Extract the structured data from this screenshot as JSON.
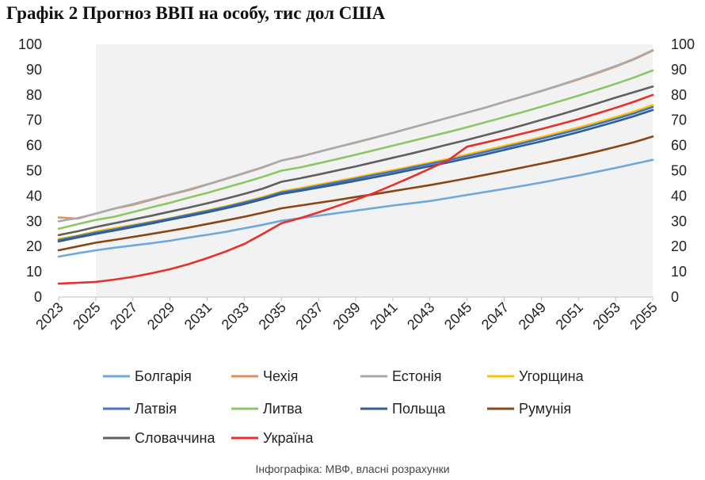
{
  "title": "Графік 2 Прогноз ВВП на особу, тис дол США",
  "source": "Інфографіка: МВФ, власні розрахунки",
  "chart_data": {
    "type": "line",
    "title": "Графік 2 Прогноз ВВП на особу, тис дол США",
    "x": [
      2023,
      2024,
      2025,
      2026,
      2027,
      2028,
      2029,
      2030,
      2031,
      2032,
      2033,
      2034,
      2035,
      2036,
      2037,
      2038,
      2039,
      2040,
      2041,
      2042,
      2043,
      2044,
      2045,
      2046,
      2047,
      2048,
      2049,
      2050,
      2051,
      2052,
      2053,
      2054,
      2055
    ],
    "x_tick_labels": [
      "2023",
      "2025",
      "2027",
      "2029",
      "2031",
      "2033",
      "2035",
      "2037",
      "2039",
      "2041",
      "2043",
      "2045",
      "2047",
      "2049",
      "2051",
      "2053",
      "2055"
    ],
    "ylim": [
      0,
      100
    ],
    "y_ticks": [
      "0",
      "10",
      "20",
      "30",
      "40",
      "50",
      "60",
      "70",
      "80",
      "90",
      "100"
    ],
    "grid": false,
    "shaded_forecast_from": 2025,
    "legend_position": "bottom",
    "series": [
      {
        "name": "Болгарія",
        "color": "#6fa8dc",
        "values": [
          16,
          17.3,
          18.5,
          19.5,
          20.4,
          21.3,
          22.3,
          23.5,
          24.6,
          25.8,
          27.2,
          28.6,
          30.2,
          31.2,
          32.2,
          33.2,
          34.2,
          35.2,
          36.2,
          37.1,
          38,
          39.2,
          40.4,
          41.6,
          42.8,
          44,
          45.3,
          46.7,
          48.1,
          49.6,
          51.1,
          52.7,
          54.3
        ]
      },
      {
        "name": "Чехія",
        "color": "#e0905a",
        "values": [
          31.5,
          31,
          33,
          35,
          36.5,
          38.5,
          40.5,
          42.3,
          44.5,
          46.7,
          49,
          51.3,
          54,
          55.5,
          57.5,
          59.3,
          61.1,
          63,
          65,
          67,
          69,
          71,
          73,
          75,
          77.2,
          79.3,
          81.5,
          83.8,
          86.1,
          88.6,
          91.2,
          94.1,
          97.5
        ]
      },
      {
        "name": "Естонія",
        "color": "#aaaaaa",
        "values": [
          30,
          31.2,
          33,
          35,
          36.8,
          38.7,
          40.6,
          42.5,
          44.6,
          46.8,
          49.1,
          51.4,
          54,
          55.6,
          57.4,
          59.3,
          61.2,
          63.1,
          65,
          67,
          69,
          71,
          73,
          75,
          77.2,
          79.4,
          81.6,
          83.9,
          86.3,
          88.8,
          91.4,
          94.3,
          97.7
        ]
      },
      {
        "name": "Угорщина",
        "color": "#ffc000",
        "values": [
          23,
          24.3,
          26,
          27.2,
          28.5,
          29.8,
          31.2,
          32.7,
          34.3,
          35.9,
          37.7,
          39.6,
          41.8,
          43.1,
          44.5,
          45.9,
          47.3,
          48.8,
          50.2,
          51.7,
          53.2,
          54.7,
          56.4,
          58.1,
          59.8,
          61.5,
          63.3,
          65.2,
          67.1,
          69.1,
          71.2,
          73.4,
          76
        ]
      },
      {
        "name": "Латвія",
        "color": "#4472c4",
        "values": [
          22.5,
          24,
          25.5,
          26.8,
          28.2,
          29.6,
          31,
          32.5,
          34,
          35.6,
          37.4,
          39.2,
          41.4,
          42.6,
          44,
          45.4,
          46.8,
          48.3,
          49.7,
          51.2,
          52.7,
          54.2,
          55.8,
          57.5,
          59.2,
          60.9,
          62.7,
          64.5,
          66.4,
          68.4,
          70.5,
          72.7,
          75.2
        ]
      },
      {
        "name": "Литва",
        "color": "#8cc665",
        "values": [
          27,
          28.8,
          30.5,
          31.8,
          33.6,
          35.5,
          37.3,
          39.3,
          41.2,
          43.3,
          45.4,
          47.6,
          50,
          51.3,
          52.9,
          54.6,
          56.3,
          58.1,
          59.9,
          61.7,
          63.5,
          65.3,
          67.2,
          69.2,
          71.2,
          73.2,
          75.3,
          77.5,
          79.7,
          82,
          84.4,
          86.9,
          89.7
        ]
      },
      {
        "name": "Польща",
        "color": "#2f5f8f",
        "values": [
          22,
          23.5,
          25,
          26.3,
          27.7,
          29.1,
          30.6,
          32,
          33.5,
          35.1,
          36.8,
          38.7,
          40.8,
          42,
          43.3,
          44.6,
          46,
          47.4,
          48.8,
          50.3,
          51.8,
          53.3,
          54.9,
          56.5,
          58.2,
          59.9,
          61.6,
          63.4,
          65.3,
          67.3,
          69.4,
          71.6,
          74
        ]
      },
      {
        "name": "Румунія",
        "color": "#8b4513",
        "values": [
          18.5,
          20,
          21.5,
          22.6,
          23.8,
          25,
          26.2,
          27.5,
          28.9,
          30.3,
          31.8,
          33.4,
          35.1,
          36.2,
          37.3,
          38.4,
          39.6,
          40.7,
          41.9,
          43.1,
          44.3,
          45.6,
          47,
          48.4,
          49.8,
          51.3,
          52.8,
          54.3,
          55.9,
          57.6,
          59.4,
          61.3,
          63.5
        ]
      },
      {
        "name": "Словаччина",
        "color": "#606060",
        "values": [
          24.5,
          26,
          27.7,
          29.2,
          30.7,
          32.2,
          33.8,
          35.4,
          37.1,
          38.9,
          40.8,
          42.9,
          45.6,
          47,
          48.5,
          50.1,
          51.7,
          53.4,
          55.1,
          56.8,
          58.6,
          60.4,
          62.2,
          64.1,
          66,
          68,
          70.1,
          72.2,
          74.4,
          76.6,
          78.9,
          81.1,
          83.3
        ]
      },
      {
        "name": "Україна",
        "color": "#e8302a",
        "values": [
          5.3,
          5.6,
          6,
          6.9,
          8,
          9.4,
          11,
          13,
          15.4,
          18,
          21,
          25,
          29.2,
          31.2,
          33.5,
          36,
          38.5,
          41.2,
          44.3,
          47.5,
          50.8,
          54.2,
          59.5,
          61.2,
          62.9,
          64.7,
          66.5,
          68.4,
          70.4,
          72.6,
          74.9,
          77.3,
          80
        ]
      }
    ]
  }
}
